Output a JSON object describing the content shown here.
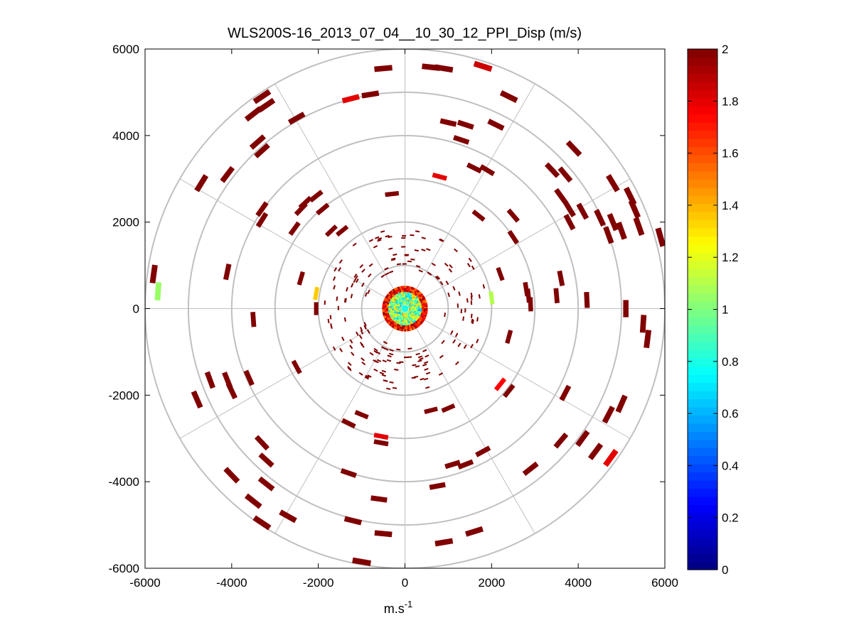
{
  "chart_data": {
    "type": "ppi_polar_scatter",
    "title": "WLS200S-16_2013_07_04__10_30_12_PPI_Disp (m/s)",
    "xlabel_base": "m.s",
    "xlabel_exponent": "-1",
    "ylabel": "",
    "xlim": [
      -6000,
      6000
    ],
    "ylim": [
      -6000,
      6000
    ],
    "x_ticks": [
      -6000,
      -4000,
      -2000,
      0,
      2000,
      4000,
      6000
    ],
    "y_ticks": [
      6000,
      4000,
      2000,
      0,
      -2000,
      -4000,
      -6000
    ],
    "x_tick_labels": [
      "-6000",
      "-4000",
      "-2000",
      "0",
      "2000",
      "4000",
      "6000"
    ],
    "y_tick_labels": [
      "6000",
      "4000",
      "2000",
      "0",
      "-2000",
      "-4000",
      "-6000"
    ],
    "polar_grid": {
      "range_rings_m": [
        1000,
        2000,
        3000,
        4000,
        5000,
        6000
      ],
      "spoke_angles_deg": [
        0,
        30,
        60,
        90,
        120,
        150,
        180,
        210,
        240,
        270,
        300,
        330
      ],
      "grid_color": "#c0c0c0"
    },
    "colorbar": {
      "colormap": "jet",
      "min": 0,
      "max": 2,
      "ticks": [
        0,
        0.2,
        0.4,
        0.6,
        0.8,
        1,
        1.2,
        1.4,
        1.6,
        1.8,
        2
      ],
      "tick_labels": [
        "0",
        "0.2",
        "0.4",
        "0.6",
        "0.8",
        "1",
        "1.2",
        "1.4",
        "1.6",
        "1.8",
        "2"
      ]
    },
    "near_center_disc": {
      "radius_m": 500,
      "value_range": [
        0.6,
        2.0
      ]
    },
    "points": [
      {
        "x": -500,
        "y": 5550,
        "v": 2.0
      },
      {
        "x": 600,
        "y": 5580,
        "v": 2.0
      },
      {
        "x": 900,
        "y": 5550,
        "v": 2.0
      },
      {
        "x": 1800,
        "y": 5600,
        "v": 1.85
      },
      {
        "x": 2400,
        "y": 4900,
        "v": 2.0
      },
      {
        "x": -1250,
        "y": 4850,
        "v": 1.8
      },
      {
        "x": -800,
        "y": 4950,
        "v": 2.0
      },
      {
        "x": -3300,
        "y": 4900,
        "v": 2.0
      },
      {
        "x": -3200,
        "y": 4700,
        "v": 2.0
      },
      {
        "x": -3500,
        "y": 4500,
        "v": 2.0
      },
      {
        "x": -2500,
        "y": 4400,
        "v": 2.0
      },
      {
        "x": 1000,
        "y": 4300,
        "v": 2.0
      },
      {
        "x": 1400,
        "y": 4250,
        "v": 2.0
      },
      {
        "x": 2100,
        "y": 4250,
        "v": 2.0
      },
      {
        "x": -3400,
        "y": 3850,
        "v": 2.0
      },
      {
        "x": -3300,
        "y": 3650,
        "v": 2.0
      },
      {
        "x": 1300,
        "y": 3900,
        "v": 2.0
      },
      {
        "x": 3900,
        "y": 3700,
        "v": 2.0
      },
      {
        "x": 1600,
        "y": 3250,
        "v": 2.0
      },
      {
        "x": 1900,
        "y": 3200,
        "v": 2.0
      },
      {
        "x": -4100,
        "y": 3100,
        "v": 2.0
      },
      {
        "x": -4700,
        "y": 2900,
        "v": 2.0
      },
      {
        "x": 3400,
        "y": 3200,
        "v": 2.0
      },
      {
        "x": 3700,
        "y": 3100,
        "v": 2.0
      },
      {
        "x": 800,
        "y": 3050,
        "v": 1.8
      },
      {
        "x": -300,
        "y": 2650,
        "v": 2.0
      },
      {
        "x": 3600,
        "y": 2600,
        "v": 2.0
      },
      {
        "x": -2050,
        "y": 2600,
        "v": 2.0
      },
      {
        "x": -2300,
        "y": 2450,
        "v": 2.0
      },
      {
        "x": -2400,
        "y": 2300,
        "v": 2.0
      },
      {
        "x": -1900,
        "y": 2300,
        "v": 2.0
      },
      {
        "x": 4800,
        "y": 2900,
        "v": 2.0
      },
      {
        "x": 5200,
        "y": 2600,
        "v": 2.0
      },
      {
        "x": -3300,
        "y": 2300,
        "v": 2.0
      },
      {
        "x": -3300,
        "y": 2050,
        "v": 2.0
      },
      {
        "x": 3800,
        "y": 2300,
        "v": 2.0
      },
      {
        "x": 4100,
        "y": 2250,
        "v": 2.0
      },
      {
        "x": 4500,
        "y": 2100,
        "v": 2.0
      },
      {
        "x": 4800,
        "y": 2000,
        "v": 2.0
      },
      {
        "x": 5000,
        "y": 1800,
        "v": 2.0
      },
      {
        "x": 5300,
        "y": 2300,
        "v": 2.0
      },
      {
        "x": 5400,
        "y": 1900,
        "v": 2.0
      },
      {
        "x": 4700,
        "y": 1700,
        "v": 2.0
      },
      {
        "x": 1700,
        "y": 2150,
        "v": 2.0
      },
      {
        "x": 2500,
        "y": 2150,
        "v": 2.0
      },
      {
        "x": 3800,
        "y": 2000,
        "v": 2.0
      },
      {
        "x": -2550,
        "y": 1850,
        "v": 2.0
      },
      {
        "x": -1700,
        "y": 1800,
        "v": 2.0
      },
      {
        "x": -1450,
        "y": 1800,
        "v": 2.0
      },
      {
        "x": 2500,
        "y": 1650,
        "v": 2.0
      },
      {
        "x": 5900,
        "y": 1650,
        "v": 2.0
      },
      {
        "x": -4100,
        "y": 850,
        "v": 2.0
      },
      {
        "x": -2400,
        "y": 700,
        "v": 2.0
      },
      {
        "x": -5800,
        "y": 800,
        "v": 2.0
      },
      {
        "x": -5700,
        "y": 400,
        "v": 1.05
      },
      {
        "x": 2200,
        "y": 800,
        "v": 2.0
      },
      {
        "x": 3600,
        "y": 700,
        "v": 2.0
      },
      {
        "x": 3500,
        "y": 300,
        "v": 2.0
      },
      {
        "x": 2800,
        "y": 450,
        "v": 2.0
      },
      {
        "x": 2850,
        "y": 300,
        "v": 2.0
      },
      {
        "x": 2900,
        "y": 100,
        "v": 2.0
      },
      {
        "x": 4200,
        "y": 200,
        "v": 2.0
      },
      {
        "x": -2050,
        "y": 350,
        "v": 1.35
      },
      {
        "x": 2000,
        "y": 250,
        "v": 1.1
      },
      {
        "x": -2050,
        "y": 0,
        "v": 2.0
      },
      {
        "x": -3500,
        "y": -250,
        "v": 2.0
      },
      {
        "x": 5100,
        "y": 0,
        "v": 2.0
      },
      {
        "x": 5500,
        "y": -350,
        "v": 2.0
      },
      {
        "x": 5600,
        "y": -700,
        "v": 2.0
      },
      {
        "x": 2400,
        "y": -650,
        "v": 2.0
      },
      {
        "x": -2500,
        "y": -1350,
        "v": 2.0
      },
      {
        "x": -4500,
        "y": -1650,
        "v": 2.0
      },
      {
        "x": -4100,
        "y": -1650,
        "v": 2.0
      },
      {
        "x": -4000,
        "y": -1900,
        "v": 2.0
      },
      {
        "x": -3600,
        "y": -1600,
        "v": 2.0
      },
      {
        "x": 2200,
        "y": -1750,
        "v": 1.75
      },
      {
        "x": 2400,
        "y": -1900,
        "v": 2.0
      },
      {
        "x": 3700,
        "y": -1950,
        "v": 2.0
      },
      {
        "x": -4800,
        "y": -2100,
        "v": 2.0
      },
      {
        "x": 5000,
        "y": -2200,
        "v": 2.0
      },
      {
        "x": 4700,
        "y": -2450,
        "v": 2.0
      },
      {
        "x": -1000,
        "y": -2450,
        "v": 2.0
      },
      {
        "x": -1300,
        "y": -2650,
        "v": 2.0
      },
      {
        "x": 600,
        "y": -2350,
        "v": 2.0
      },
      {
        "x": 1000,
        "y": -2300,
        "v": 2.0
      },
      {
        "x": -550,
        "y": -2950,
        "v": 1.8
      },
      {
        "x": -550,
        "y": -3100,
        "v": 2.0
      },
      {
        "x": 3600,
        "y": -3050,
        "v": 2.0
      },
      {
        "x": 4100,
        "y": -3000,
        "v": 2.0
      },
      {
        "x": 4400,
        "y": -3300,
        "v": 2.0
      },
      {
        "x": 4750,
        "y": -3450,
        "v": 1.8
      },
      {
        "x": -3300,
        "y": -3100,
        "v": 2.0
      },
      {
        "x": -3200,
        "y": -3500,
        "v": 2.0
      },
      {
        "x": 1800,
        "y": -3300,
        "v": 2.0
      },
      {
        "x": 1100,
        "y": -3600,
        "v": 2.0
      },
      {
        "x": 1400,
        "y": -3600,
        "v": 2.0
      },
      {
        "x": 2900,
        "y": -3700,
        "v": 2.0
      },
      {
        "x": -4000,
        "y": -3850,
        "v": 2.0
      },
      {
        "x": -3200,
        "y": -4050,
        "v": 2.0
      },
      {
        "x": -1300,
        "y": -3800,
        "v": 2.0
      },
      {
        "x": 750,
        "y": -4100,
        "v": 2.0
      },
      {
        "x": -3500,
        "y": -4450,
        "v": 2.0
      },
      {
        "x": -600,
        "y": -4400,
        "v": 2.0
      },
      {
        "x": -3300,
        "y": -4950,
        "v": 2.0
      },
      {
        "x": -2700,
        "y": -4800,
        "v": 2.0
      },
      {
        "x": -1200,
        "y": -4900,
        "v": 2.0
      },
      {
        "x": -500,
        "y": -5200,
        "v": 2.0
      },
      {
        "x": 900,
        "y": -5400,
        "v": 2.0
      },
      {
        "x": 1600,
        "y": -5150,
        "v": 2.0
      },
      {
        "x": -1000,
        "y": -5850,
        "v": 2.0
      }
    ]
  }
}
